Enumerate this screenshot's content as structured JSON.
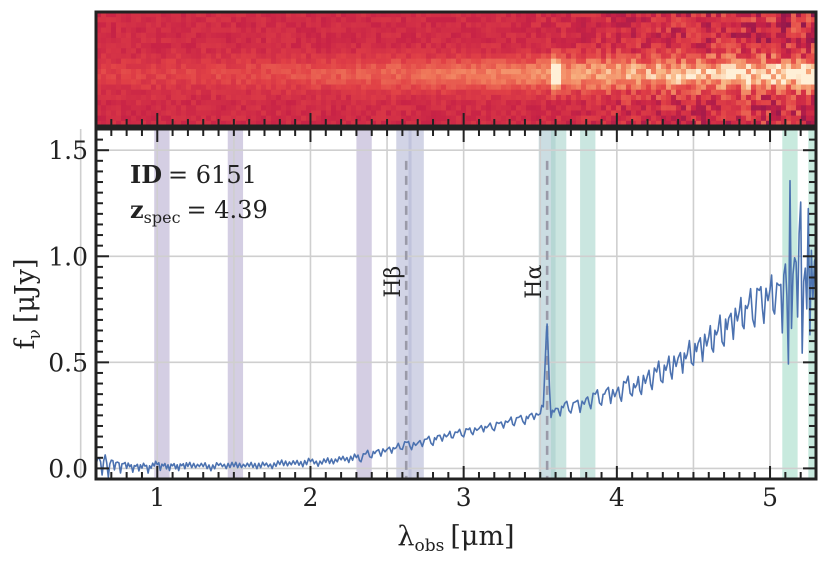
{
  "chart_data": {
    "type": "line",
    "title": "",
    "xlabel_main": "λ",
    "xlabel_sub": "obs",
    "xlabel_unit": "[μm]",
    "ylabel": "f",
    "ylabel_sub": "ν",
    "ylabel_unit": "[μJy]",
    "xlim": [
      0.6,
      5.3
    ],
    "ylim": [
      -0.05,
      1.6
    ],
    "xticks": [
      1,
      2,
      3,
      4,
      5
    ],
    "xtick_labels": [
      "1",
      "2",
      "3",
      "4",
      "5"
    ],
    "yticks": [
      0.0,
      0.5,
      1.0,
      1.5
    ],
    "ytick_labels": [
      "0.0",
      "0.5",
      "1.0",
      "1.5"
    ],
    "grid": true,
    "annotation": {
      "id_label": "ID",
      "id_value": "= 6151",
      "z_label": "z",
      "z_sub": "spec",
      "z_value": "= 4.39"
    },
    "emission_lines": [
      {
        "name": "Hβ",
        "base": "H",
        "greek": "β",
        "x": 2.625
      },
      {
        "name": "Hα",
        "base": "H",
        "greek": "α",
        "x": 3.545
      }
    ],
    "shaded_bands": [
      {
        "x0": 0.98,
        "x1": 1.08,
        "color": "#b7aed0"
      },
      {
        "x0": 1.46,
        "x1": 1.56,
        "color": "#b7aed0"
      },
      {
        "x0": 2.3,
        "x1": 2.4,
        "color": "#b7aed0"
      },
      {
        "x0": 2.56,
        "x1": 2.66,
        "color": "#b4b8d6"
      },
      {
        "x0": 2.64,
        "x1": 2.74,
        "color": "#b4b8d6"
      },
      {
        "x0": 3.49,
        "x1": 3.6,
        "color": "#a9c6cf"
      },
      {
        "x0": 3.57,
        "x1": 3.67,
        "color": "#a9d3cc"
      },
      {
        "x0": 3.76,
        "x1": 3.86,
        "color": "#a6d5cc"
      },
      {
        "x0": 5.08,
        "x1": 5.18,
        "color": "#a3dcc8"
      },
      {
        "x0": 5.25,
        "x1": 5.3,
        "color": "#a3dcc8"
      }
    ],
    "series": [
      {
        "name": "spectrum",
        "color": "#4c72b0",
        "points": [
          [
            0.6,
            0.02
          ],
          [
            0.62,
            0.06
          ],
          [
            0.64,
            -0.02
          ],
          [
            0.66,
            0.07
          ],
          [
            0.68,
            -0.03
          ],
          [
            0.7,
            0.05
          ],
          [
            0.72,
            0.0
          ],
          [
            0.74,
            0.04
          ],
          [
            0.76,
            -0.01
          ],
          [
            0.78,
            0.03
          ],
          [
            0.8,
            0.01
          ],
          [
            0.82,
            0.02
          ],
          [
            0.84,
            -0.01
          ],
          [
            0.86,
            0.02
          ],
          [
            0.88,
            0.0
          ],
          [
            0.9,
            0.01
          ],
          [
            0.92,
            0.02
          ],
          [
            0.94,
            -0.01
          ],
          [
            0.96,
            0.01
          ],
          [
            0.98,
            0.02
          ],
          [
            1.0,
            0.03
          ],
          [
            1.02,
            0.0
          ],
          [
            1.04,
            0.02
          ],
          [
            1.06,
            0.01
          ],
          [
            1.08,
            0.0
          ],
          [
            1.1,
            0.02
          ],
          [
            1.12,
            0.01
          ],
          [
            1.14,
            0.0
          ],
          [
            1.16,
            0.02
          ],
          [
            1.18,
            0.01
          ],
          [
            1.2,
            0.02
          ],
          [
            1.25,
            0.01
          ],
          [
            1.3,
            0.02
          ],
          [
            1.35,
            0.0
          ],
          [
            1.4,
            0.02
          ],
          [
            1.45,
            0.01
          ],
          [
            1.5,
            0.02
          ],
          [
            1.55,
            0.01
          ],
          [
            1.6,
            0.02
          ],
          [
            1.65,
            0.01
          ],
          [
            1.7,
            0.02
          ],
          [
            1.75,
            0.01
          ],
          [
            1.8,
            0.03
          ],
          [
            1.85,
            0.02
          ],
          [
            1.9,
            0.03
          ],
          [
            1.95,
            0.02
          ],
          [
            2.0,
            0.04
          ],
          [
            2.05,
            0.02
          ],
          [
            2.1,
            0.04
          ],
          [
            2.15,
            0.03
          ],
          [
            2.2,
            0.05
          ],
          [
            2.25,
            0.04
          ],
          [
            2.3,
            0.06
          ],
          [
            2.33,
            0.04
          ],
          [
            2.36,
            0.08
          ],
          [
            2.4,
            0.06
          ],
          [
            2.43,
            0.09
          ],
          [
            2.46,
            0.07
          ],
          [
            2.5,
            0.1
          ],
          [
            2.53,
            0.08
          ],
          [
            2.56,
            0.11
          ],
          [
            2.6,
            0.1
          ],
          [
            2.63,
            0.13
          ],
          [
            2.66,
            0.1
          ],
          [
            2.7,
            0.13
          ],
          [
            2.73,
            0.11
          ],
          [
            2.76,
            0.15
          ],
          [
            2.8,
            0.12
          ],
          [
            2.83,
            0.16
          ],
          [
            2.86,
            0.14
          ],
          [
            2.9,
            0.17
          ],
          [
            2.93,
            0.15
          ],
          [
            2.96,
            0.18
          ],
          [
            3.0,
            0.16
          ],
          [
            3.03,
            0.19
          ],
          [
            3.06,
            0.17
          ],
          [
            3.1,
            0.2
          ],
          [
            3.13,
            0.18
          ],
          [
            3.16,
            0.21
          ],
          [
            3.2,
            0.19
          ],
          [
            3.23,
            0.22
          ],
          [
            3.26,
            0.2
          ],
          [
            3.3,
            0.24
          ],
          [
            3.33,
            0.21
          ],
          [
            3.36,
            0.25
          ],
          [
            3.4,
            0.22
          ],
          [
            3.43,
            0.26
          ],
          [
            3.46,
            0.24
          ],
          [
            3.5,
            0.27
          ],
          [
            3.52,
            0.3
          ],
          [
            3.53,
            0.48
          ],
          [
            3.54,
            0.65
          ],
          [
            3.545,
            0.69
          ],
          [
            3.55,
            0.6
          ],
          [
            3.56,
            0.4
          ],
          [
            3.57,
            0.25
          ],
          [
            3.6,
            0.29
          ],
          [
            3.63,
            0.26
          ],
          [
            3.66,
            0.32
          ],
          [
            3.7,
            0.27
          ],
          [
            3.73,
            0.33
          ],
          [
            3.76,
            0.28
          ],
          [
            3.8,
            0.34
          ],
          [
            3.83,
            0.3
          ],
          [
            3.86,
            0.37
          ],
          [
            3.9,
            0.31
          ],
          [
            3.93,
            0.39
          ],
          [
            3.96,
            0.33
          ],
          [
            4.0,
            0.38
          ],
          [
            4.03,
            0.34
          ],
          [
            4.06,
            0.43
          ],
          [
            4.1,
            0.36
          ],
          [
            4.13,
            0.42
          ],
          [
            4.16,
            0.38
          ],
          [
            4.2,
            0.46
          ],
          [
            4.23,
            0.4
          ],
          [
            4.26,
            0.49
          ],
          [
            4.3,
            0.43
          ],
          [
            4.33,
            0.52
          ],
          [
            4.36,
            0.46
          ],
          [
            4.4,
            0.55
          ],
          [
            4.43,
            0.48
          ],
          [
            4.46,
            0.58
          ],
          [
            4.5,
            0.52
          ],
          [
            4.53,
            0.62
          ],
          [
            4.56,
            0.55
          ],
          [
            4.6,
            0.66
          ],
          [
            4.63,
            0.58
          ],
          [
            4.66,
            0.7
          ],
          [
            4.7,
            0.62
          ],
          [
            4.73,
            0.74
          ],
          [
            4.76,
            0.66
          ],
          [
            4.8,
            0.79
          ],
          [
            4.83,
            0.69
          ],
          [
            4.86,
            0.83
          ],
          [
            4.9,
            0.72
          ],
          [
            4.93,
            0.87
          ],
          [
            4.96,
            0.74
          ],
          [
            5.0,
            0.9
          ],
          [
            5.03,
            0.76
          ],
          [
            5.06,
            0.92
          ],
          [
            5.08,
            0.7
          ],
          [
            5.1,
            1.0
          ],
          [
            5.12,
            0.55
          ],
          [
            5.13,
            1.42
          ],
          [
            5.14,
            0.7
          ],
          [
            5.16,
            1.05
          ],
          [
            5.18,
            0.78
          ],
          [
            5.2,
            1.3
          ],
          [
            5.21,
            0.6
          ],
          [
            5.22,
            0.95
          ],
          [
            5.24,
            0.8
          ],
          [
            5.25,
            1.28
          ],
          [
            5.26,
            0.7
          ],
          [
            5.27,
            1.08
          ],
          [
            5.28,
            0.85
          ],
          [
            5.3,
            1.0
          ]
        ]
      }
    ],
    "spectrum_2d": {
      "description_colormap": "rocket",
      "background_color": "#c0204a",
      "trace_color": "#fff3d0"
    }
  }
}
